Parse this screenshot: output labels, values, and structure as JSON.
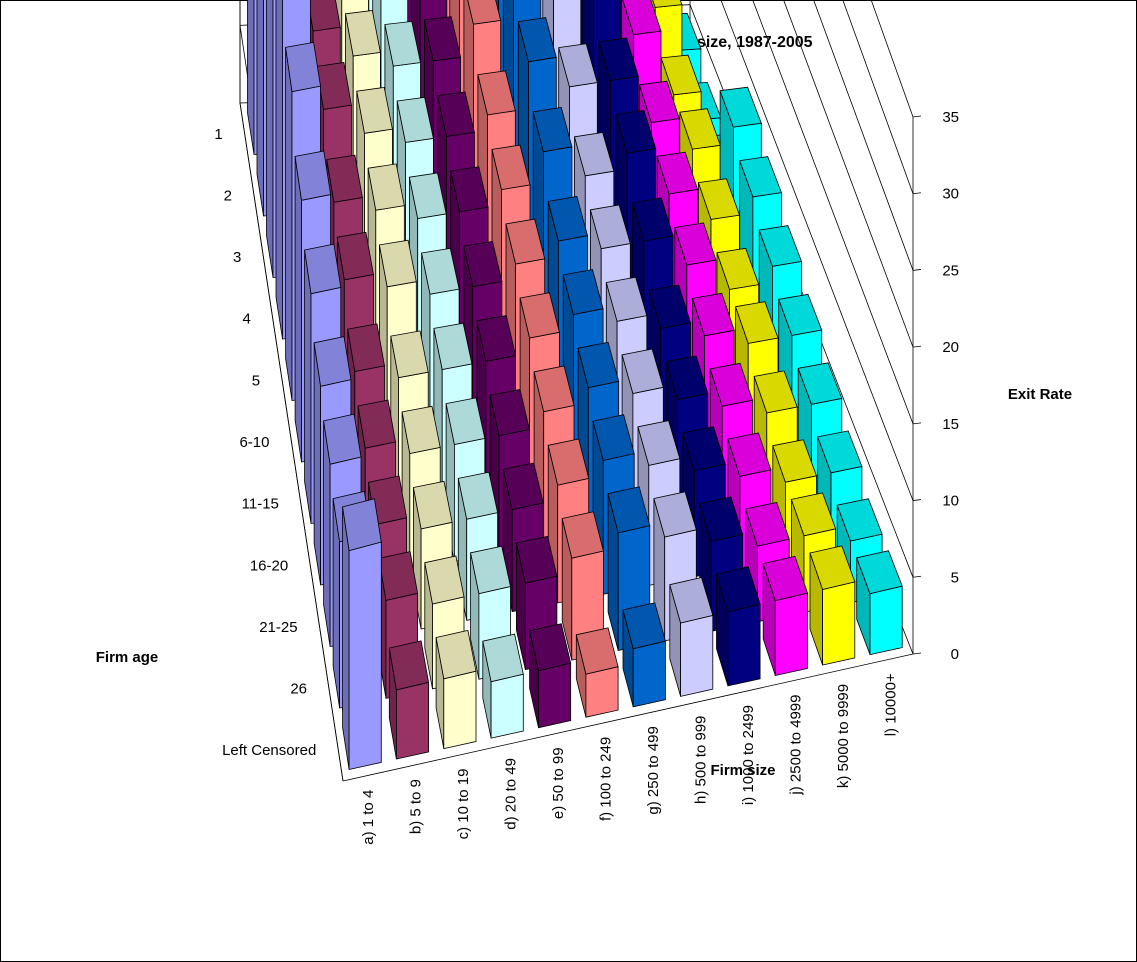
{
  "chart_data": {
    "type": "bar3d",
    "title": "Job Destruction from Exit Rates By firm age and size, 1987-2005",
    "xlabel": "Firm size",
    "ylabel": "Firm age",
    "zlabel": "Exit Rate",
    "zlim": [
      0,
      35
    ],
    "zticks": [
      "0",
      "5",
      "10",
      "15",
      "20",
      "25",
      "30",
      "35"
    ],
    "grid": true,
    "ages": [
      "1",
      "2",
      "3",
      "4",
      "5",
      "6-10",
      "11-15",
      "16-20",
      "21-25",
      "26",
      "Left Censored"
    ],
    "sizes": [
      "a) 1 to 4",
      "b) 5 to 9",
      "c) 10 to 19",
      "d) 20 to 49",
      "e) 50 to 99",
      "f) 100 to 249",
      "g) 250 to 499",
      "h) 500 to 999",
      "i) 1000 to 2499",
      "j) 2500 to 4999",
      "k) 5000 to 9999",
      "l) 10000+"
    ],
    "colors": [
      "#9999ff",
      "#993366",
      "#ffffcc",
      "#ccffff",
      "#660066",
      "#ff8080",
      "#0066cc",
      "#ccccff",
      "#000080",
      "#ff00ff",
      "#ffff00",
      "#00ffff"
    ],
    "values": [
      [
        32,
        28,
        25,
        23,
        21,
        18,
        16,
        14,
        13,
        12,
        16
      ],
      [
        20,
        18,
        16,
        15,
        13,
        12,
        10,
        9,
        8,
        7,
        5
      ],
      [
        18,
        16,
        14,
        13,
        12,
        11,
        9,
        8,
        7,
        6,
        5
      ],
      [
        17,
        15,
        13,
        12,
        11,
        10,
        9,
        8,
        7,
        6,
        4
      ],
      [
        17,
        15,
        13,
        12,
        11,
        10,
        9,
        8,
        7,
        6,
        4
      ],
      [
        21,
        19,
        15,
        13,
        12,
        11,
        10,
        9,
        8,
        7,
        3
      ],
      [
        24,
        22,
        18,
        16,
        14,
        12,
        11,
        10,
        9,
        8,
        4
      ],
      [
        22,
        20,
        17,
        14,
        12,
        11,
        10,
        9,
        8,
        7,
        5
      ],
      [
        30,
        21,
        16,
        14,
        13,
        11,
        9,
        8,
        7,
        6,
        5
      ],
      [
        17,
        16,
        13,
        11,
        10,
        9,
        8,
        7,
        6,
        5,
        5
      ],
      [
        16,
        11,
        9,
        9,
        8,
        7,
        7,
        6,
        5,
        5,
        5
      ],
      [
        5,
        4,
        4,
        10,
        9,
        8,
        7,
        6,
        5,
        4,
        4
      ]
    ]
  }
}
